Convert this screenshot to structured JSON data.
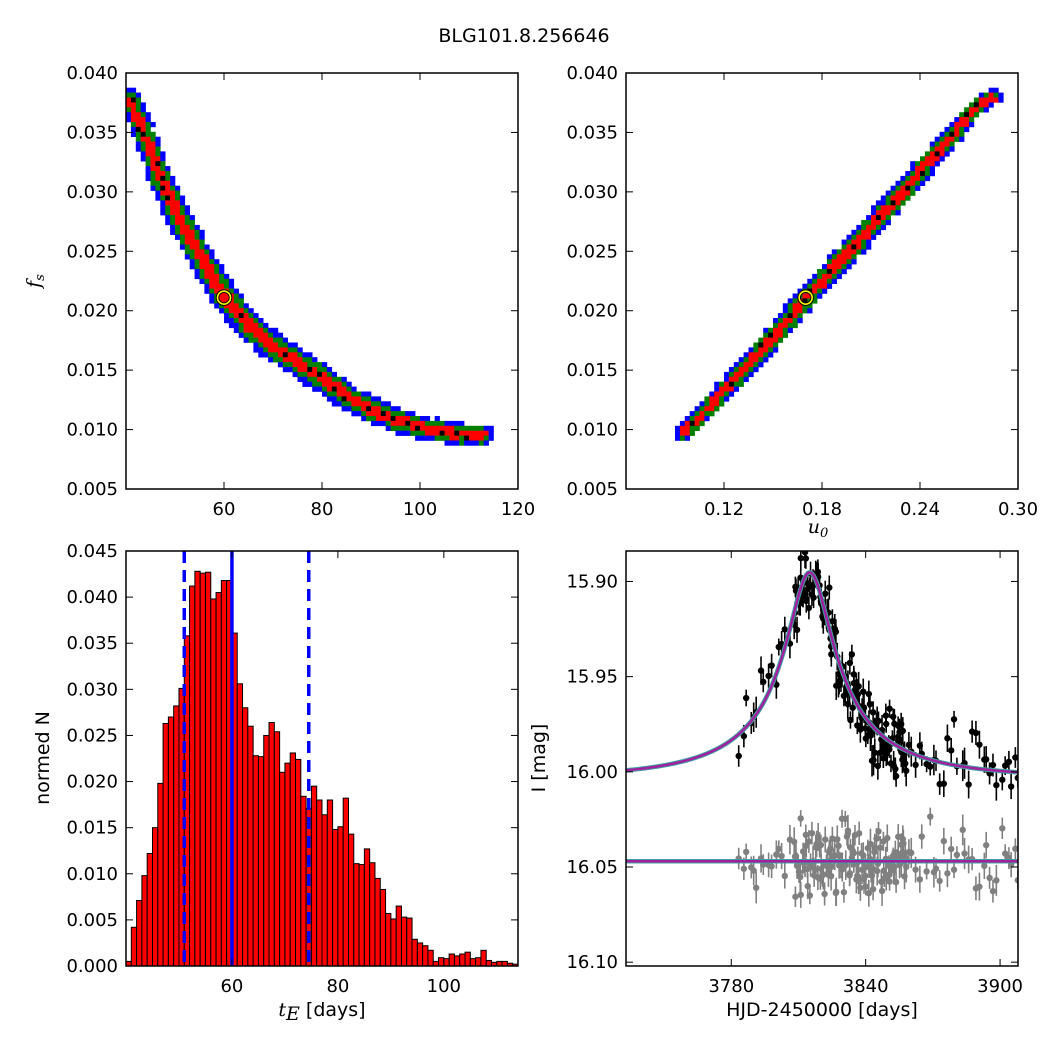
{
  "figure": {
    "title": "BLG101.8.256646"
  },
  "colors": {
    "sigma3": "#0000ff",
    "sigma2": "#008000",
    "sigma1": "#ff0000",
    "best": "#000000",
    "marker": "#ffff00",
    "bars": "#ff0000",
    "lines": "#0000ff",
    "model": "#a020a0",
    "model_edge": "#40a0a0",
    "data": "#000000",
    "residuals": "#808080"
  },
  "chart_data": [
    {
      "type": "heatmap",
      "panel": "tE-fs",
      "xlabel": "",
      "ylabel": "f_s",
      "ylabel_main": "f",
      "ylabel_sub": "s",
      "xlim": [
        40,
        120
      ],
      "ylim": [
        0.005,
        0.04
      ],
      "xticks": [
        60,
        80,
        100,
        120
      ],
      "xtick_labels": [
        "60",
        "80",
        "100",
        "120"
      ],
      "yticks": [
        0.005,
        0.01,
        0.015,
        0.02,
        0.025,
        0.03,
        0.035,
        0.04
      ],
      "ytick_labels": [
        "0.005",
        "0.010",
        "0.015",
        "0.020",
        "0.025",
        "0.030",
        "0.035",
        "0.040"
      ],
      "best_fit": {
        "x": 60,
        "y": 0.0211
      },
      "ridge": [
        [
          41,
          0.0378
        ],
        [
          43,
          0.0355
        ],
        [
          45,
          0.0335
        ],
        [
          47,
          0.0312
        ],
        [
          50,
          0.0285
        ],
        [
          53,
          0.0262
        ],
        [
          56,
          0.024
        ],
        [
          60,
          0.0213
        ],
        [
          65,
          0.0188
        ],
        [
          70,
          0.017
        ],
        [
          75,
          0.0156
        ],
        [
          80,
          0.0143
        ],
        [
          85,
          0.0128
        ],
        [
          90,
          0.0117
        ],
        [
          95,
          0.0108
        ],
        [
          100,
          0.0102
        ],
        [
          105,
          0.0098
        ],
        [
          110,
          0.0095
        ],
        [
          113,
          0.0095
        ]
      ]
    },
    {
      "type": "heatmap",
      "panel": "u0-fs",
      "xlabel": "u_0",
      "xlabel_main": "u",
      "xlabel_sub": "0",
      "ylabel": "",
      "xlim": [
        0.06,
        0.3
      ],
      "ylim": [
        0.005,
        0.04
      ],
      "xticks": [
        0.12,
        0.18,
        0.24,
        0.3
      ],
      "xtick_labels": [
        "0.12",
        "0.18",
        "0.24",
        "0.30"
      ],
      "yticks": [
        0.005,
        0.01,
        0.015,
        0.02,
        0.025,
        0.03,
        0.035,
        0.04
      ],
      "ytick_labels": [
        "0.005",
        "0.010",
        "0.015",
        "0.020",
        "0.025",
        "0.030",
        "0.035",
        "0.040"
      ],
      "best_fit": {
        "x": 0.17,
        "y": 0.0211
      },
      "ridge": [
        [
          0.095,
          0.0097
        ],
        [
          0.11,
          0.0118
        ],
        [
          0.125,
          0.014
        ],
        [
          0.14,
          0.0162
        ],
        [
          0.155,
          0.0185
        ],
        [
          0.17,
          0.021
        ],
        [
          0.185,
          0.0232
        ],
        [
          0.2,
          0.0255
        ],
        [
          0.215,
          0.0278
        ],
        [
          0.23,
          0.03
        ],
        [
          0.245,
          0.0325
        ],
        [
          0.26,
          0.0348
        ],
        [
          0.275,
          0.0372
        ],
        [
          0.285,
          0.038
        ]
      ]
    },
    {
      "type": "bar",
      "panel": "tE-histogram",
      "xlabel": "t_E [days]",
      "xlabel_main": "t",
      "xlabel_sub": "E",
      "xlabel_unit": "[days]",
      "ylabel": "normed N",
      "xlim": [
        40,
        114
      ],
      "ylim": [
        0,
        0.045
      ],
      "xticks": [
        60,
        80,
        100
      ],
      "xtick_labels": [
        "60",
        "80",
        "100"
      ],
      "yticks": [
        0.0,
        0.005,
        0.01,
        0.015,
        0.02,
        0.025,
        0.03,
        0.035,
        0.04,
        0.045
      ],
      "ytick_labels": [
        "0.000",
        "0.005",
        "0.010",
        "0.015",
        "0.020",
        "0.025",
        "0.030",
        "0.035",
        "0.040",
        "0.045"
      ],
      "bin_start": 40,
      "bin_width": 1.0,
      "values": [
        0.0005,
        0.0042,
        0.0071,
        0.0098,
        0.0122,
        0.015,
        0.0198,
        0.0263,
        0.027,
        0.0282,
        0.0301,
        0.0358,
        0.0412,
        0.0428,
        0.0426,
        0.0427,
        0.0398,
        0.0405,
        0.0418,
        0.0418,
        0.0361,
        0.0306,
        0.028,
        0.026,
        0.0228,
        0.0227,
        0.025,
        0.0264,
        0.0254,
        0.021,
        0.022,
        0.0231,
        0.0224,
        0.0184,
        0.0171,
        0.0195,
        0.018,
        0.0164,
        0.018,
        0.0148,
        0.0151,
        0.0182,
        0.0143,
        0.0111,
        0.011,
        0.0127,
        0.0112,
        0.0095,
        0.0083,
        0.0057,
        0.0051,
        0.0065,
        0.0053,
        0.0052,
        0.0029,
        0.0025,
        0.0022,
        0.0017,
        0.0005,
        0.0009,
        0.0008,
        0.0013,
        0.0011,
        0.0013,
        0.0015,
        0.0008,
        0.0009,
        0.0017,
        0.0006,
        0.0004,
        0.0005,
        0.0005,
        0.0003,
        0.0002
      ],
      "vlines": [
        {
          "x": 51,
          "style": "dashed"
        },
        {
          "x": 60,
          "style": "solid"
        },
        {
          "x": 74.5,
          "style": "dashed"
        }
      ]
    },
    {
      "type": "scatter",
      "panel": "lightcurve",
      "xlabel": "HJD-2450000 [days]",
      "ylabel": "I [mag]",
      "xlim": [
        3733,
        3908
      ],
      "ylim": [
        16.102,
        15.884
      ],
      "inverted_y": true,
      "xticks": [
        3780,
        3840,
        3900
      ],
      "xtick_labels": [
        "3780",
        "3840",
        "3900"
      ],
      "yticks": [
        15.9,
        15.95,
        16.0,
        16.05,
        16.1
      ],
      "ytick_labels": [
        "15.90",
        "15.95",
        "16.00",
        "16.05",
        "16.10"
      ],
      "model": {
        "t0": 3815,
        "tE": 60,
        "u0": 0.17,
        "fs": 0.0211,
        "baseline": 16.003
      },
      "residual_offset": 16.047,
      "data_range": {
        "t_min": 3783,
        "t_max": 3908,
        "t_dense_min": 3808,
        "t_dense_max": 3858
      },
      "noise": {
        "scatter": 0.009,
        "errbar": 0.006
      }
    }
  ]
}
